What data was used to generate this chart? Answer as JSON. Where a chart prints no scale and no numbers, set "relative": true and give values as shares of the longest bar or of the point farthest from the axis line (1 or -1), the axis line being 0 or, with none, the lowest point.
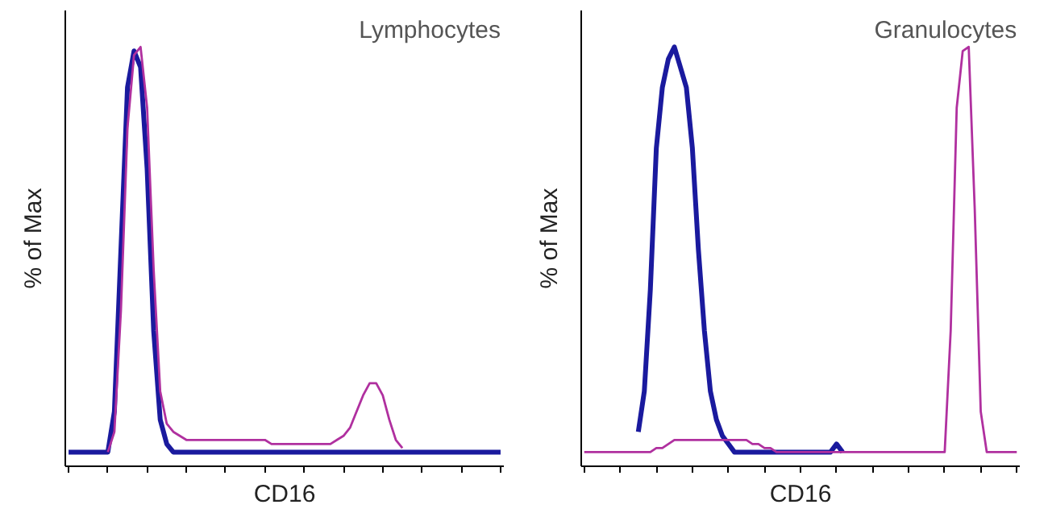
{
  "chart_data": [
    {
      "type": "line",
      "relative": true,
      "ylabel": "% of Max",
      "xlabel": "CD16",
      "annotations": [
        "Lymphocytes"
      ],
      "grid": false,
      "categories": [
        null,
        null,
        null,
        null,
        null,
        null,
        null,
        null,
        null,
        null,
        null,
        null,
        null,
        null,
        null,
        null,
        null,
        null,
        null,
        null,
        null,
        null,
        null,
        null,
        null,
        null,
        null,
        null,
        null,
        null,
        null,
        null,
        null,
        null,
        null,
        null,
        null,
        null,
        null,
        null,
        null,
        null,
        null,
        null,
        null,
        null,
        null,
        null,
        null,
        null,
        null,
        null,
        null,
        null,
        null,
        null,
        null,
        null,
        null,
        null,
        null,
        null,
        null,
        null,
        null,
        null,
        null
      ],
      "series": [
        {
          "color": "#1a1a9e",
          "values": [
            0,
            0,
            0,
            0,
            0,
            0,
            0,
            0.1,
            0.5,
            0.9,
            0.99,
            0.95,
            0.7,
            0.3,
            0.08,
            0.02,
            0,
            0,
            0,
            0,
            0,
            0,
            0,
            0,
            0,
            0,
            0,
            0,
            0,
            0,
            0,
            0,
            0,
            0,
            0,
            0,
            0,
            0,
            0,
            0,
            0,
            0,
            0,
            0,
            0,
            0,
            0,
            0,
            0,
            0,
            0,
            0,
            0,
            0,
            0,
            0,
            0,
            0,
            0,
            0,
            0,
            0,
            0,
            0,
            0,
            0,
            0
          ]
        },
        {
          "color": "#b0309f",
          "values": [
            null,
            null,
            null,
            null,
            null,
            null,
            0,
            0.05,
            0.35,
            0.8,
            0.98,
            1,
            0.85,
            0.45,
            0.15,
            0.07,
            0.05,
            0.04,
            0.03,
            0.03,
            0.03,
            0.03,
            0.03,
            0.03,
            0.03,
            0.03,
            0.03,
            0.03,
            0.03,
            0.03,
            0.03,
            0.02,
            0.02,
            0.02,
            0.02,
            0.02,
            0.02,
            0.02,
            0.02,
            0.02,
            0.02,
            0.03,
            0.04,
            0.06,
            0.1,
            0.14,
            0.17,
            0.17,
            0.14,
            0.08,
            0.03,
            0.01,
            null,
            null,
            null,
            null,
            null,
            null,
            null,
            null,
            null,
            null,
            null,
            null,
            null,
            null,
            null
          ]
        }
      ]
    },
    {
      "type": "line",
      "relative": true,
      "ylabel": "% of Max",
      "xlabel": "CD16",
      "annotations": [
        "Granulocytes"
      ],
      "grid": false,
      "categories": [
        null,
        null,
        null,
        null,
        null,
        null,
        null,
        null,
        null,
        null,
        null,
        null,
        null,
        null,
        null,
        null,
        null,
        null,
        null,
        null,
        null,
        null,
        null,
        null,
        null,
        null,
        null,
        null,
        null,
        null,
        null,
        null,
        null,
        null,
        null,
        null,
        null,
        null,
        null,
        null,
        null,
        null,
        null,
        null,
        null,
        null,
        null,
        null,
        null,
        null,
        null,
        null,
        null,
        null,
        null,
        null,
        null,
        null,
        null,
        null,
        null,
        null,
        null,
        null,
        null,
        null,
        null,
        null,
        null,
        null,
        null,
        null,
        null
      ],
      "series": [
        {
          "color": "#1a1a9e",
          "values": [
            null,
            null,
            null,
            null,
            null,
            null,
            null,
            null,
            null,
            0.05,
            0.15,
            0.4,
            0.75,
            0.9,
            0.97,
            1,
            0.95,
            0.9,
            0.75,
            0.5,
            0.3,
            0.15,
            0.08,
            0.04,
            0.02,
            0,
            0,
            0,
            0,
            0,
            0,
            0,
            0,
            0,
            0,
            0,
            0,
            0,
            0,
            0,
            0,
            0,
            0.02,
            0,
            null,
            null,
            null,
            null,
            null,
            null,
            null,
            null,
            null,
            null,
            null,
            null,
            null,
            null,
            null,
            null,
            null,
            null,
            null,
            null,
            null,
            null,
            null,
            null,
            null,
            null,
            null,
            null,
            null
          ]
        },
        {
          "color": "#b0309f",
          "values": [
            0,
            0,
            0,
            0,
            0,
            0,
            0,
            0,
            0,
            0,
            0,
            0,
            0.01,
            0.01,
            0.02,
            0.03,
            0.03,
            0.03,
            0.03,
            0.03,
            0.03,
            0.03,
            0.03,
            0.03,
            0.03,
            0.03,
            0.03,
            0.03,
            0.02,
            0.02,
            0.01,
            0.01,
            0,
            0,
            0,
            0,
            0,
            0,
            0,
            0,
            0,
            0,
            0,
            0,
            0,
            0,
            0,
            0,
            0,
            0,
            0,
            0,
            0,
            0,
            0,
            0,
            0,
            0,
            0,
            0,
            0,
            0.3,
            0.85,
            0.99,
            1,
            0.6,
            0.1,
            0,
            0,
            0,
            0,
            0,
            0
          ]
        }
      ]
    }
  ]
}
